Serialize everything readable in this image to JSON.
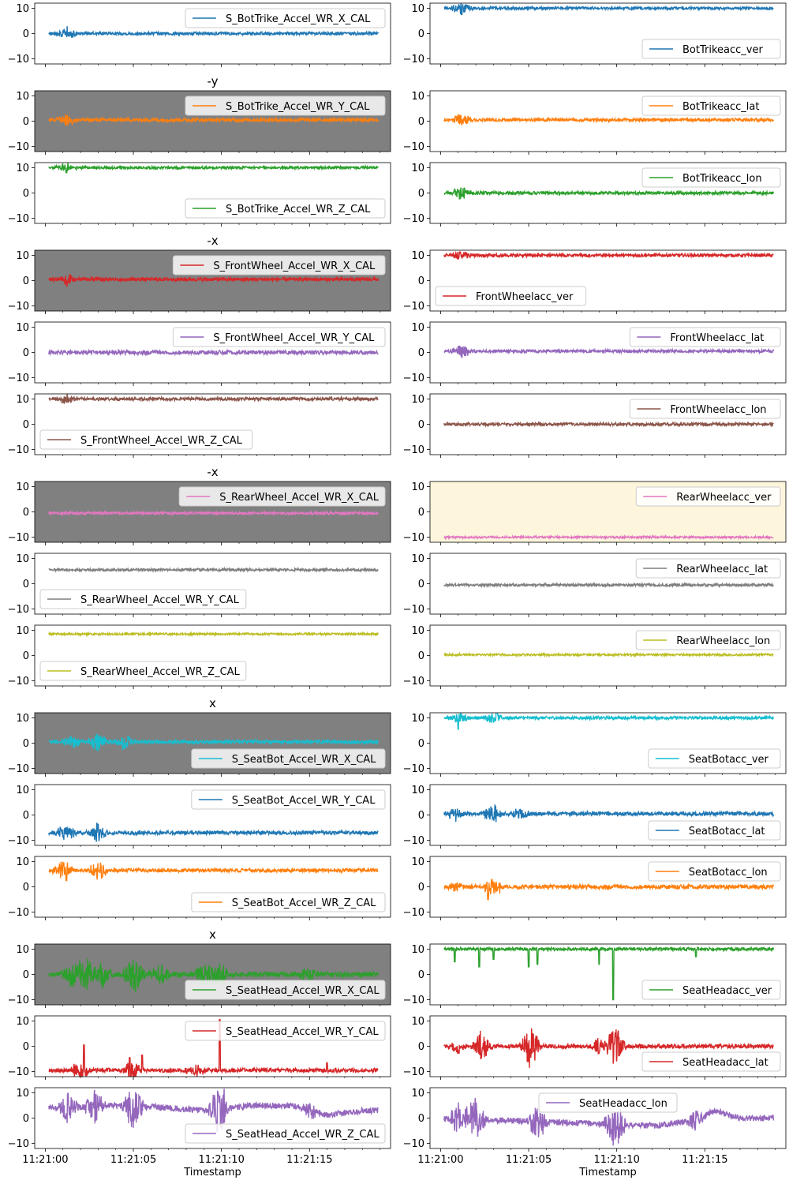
{
  "figure": {
    "xlabel": "Timestamp",
    "x_range_seconds": [
      -0.6,
      19.6
    ],
    "x_ticks": [
      {
        "t": 0,
        "label": "11:21:00"
      },
      {
        "t": 5,
        "label": "11:21:05"
      },
      {
        "t": 10,
        "label": "11:21:10"
      },
      {
        "t": 15,
        "label": "11:21:15"
      }
    ],
    "ylim": [
      -12,
      12
    ],
    "y_ticks": [
      10,
      0,
      -10
    ]
  },
  "chart_data": [
    {
      "type": "line",
      "row": 0,
      "col": 0,
      "legend": "S_BotTrike_Accel_WR_X_CAL",
      "legend_loc": "top-right",
      "color": "#1f77b4",
      "baseline": 0,
      "noise": 0.6,
      "title": "",
      "bg": "#ffffff",
      "bursts": [
        [
          1.2,
          3
        ]
      ]
    },
    {
      "type": "line",
      "row": 0,
      "col": 1,
      "legend": "BotTrikeacc_ver",
      "legend_loc": "bottom-right",
      "color": "#1f77b4",
      "baseline": 10,
      "noise": 0.5,
      "title": "",
      "bg": "#ffffff",
      "bursts": [
        [
          1.2,
          3
        ]
      ],
      "spikes": [
        [
          1.2,
          -2.5
        ]
      ]
    },
    {
      "type": "line",
      "row": 1,
      "col": 0,
      "legend": "S_BotTrike_Accel_WR_Y_CAL",
      "legend_loc": "top-right",
      "color": "#ff7f0e",
      "baseline": 0.5,
      "noise": 0.7,
      "title": "-y",
      "bg": "#808080",
      "bursts": [
        [
          1.2,
          2.5
        ]
      ]
    },
    {
      "type": "line",
      "row": 1,
      "col": 1,
      "legend": "BotTrikeacc_lat",
      "legend_loc": "top-right",
      "color": "#ff7f0e",
      "baseline": 0.5,
      "noise": 0.6,
      "title": "",
      "bg": "#ffffff",
      "bursts": [
        [
          1.2,
          2.5
        ]
      ]
    },
    {
      "type": "line",
      "row": 2,
      "col": 0,
      "legend": "S_BotTrike_Accel_WR_Z_CAL",
      "legend_loc": "bottom-right",
      "color": "#2ca02c",
      "baseline": 10,
      "noise": 0.5,
      "title": "",
      "bg": "#ffffff",
      "bursts": [
        [
          1.2,
          2
        ]
      ],
      "spikes": [
        [
          1.2,
          -2
        ]
      ]
    },
    {
      "type": "line",
      "row": 2,
      "col": 1,
      "legend": "BotTrikeacc_lon",
      "legend_loc": "top-right",
      "color": "#2ca02c",
      "baseline": 0,
      "noise": 0.6,
      "title": "",
      "bg": "#ffffff",
      "bursts": [
        [
          1.2,
          3
        ]
      ]
    },
    {
      "type": "line",
      "row": 3,
      "col": 0,
      "legend": "S_FrontWheel_Accel_WR_X_CAL",
      "legend_loc": "top-right",
      "color": "#d62728",
      "baseline": 0.5,
      "noise": 0.7,
      "title": "-x",
      "bg": "#808080",
      "bursts": [
        [
          1.2,
          2.5
        ]
      ]
    },
    {
      "type": "line",
      "row": 3,
      "col": 1,
      "legend": "FrontWheelacc_ver",
      "legend_loc": "bottom-left",
      "color": "#d62728",
      "baseline": 10,
      "noise": 0.6,
      "title": "",
      "bg": "#ffffff",
      "bursts": [
        [
          1.2,
          2
        ]
      ]
    },
    {
      "type": "line",
      "row": 4,
      "col": 0,
      "legend": "S_FrontWheel_Accel_WR_Y_CAL",
      "legend_loc": "top-right",
      "color": "#9467bd",
      "baseline": 0,
      "noise": 0.8,
      "title": "",
      "bg": "#ffffff",
      "bursts": []
    },
    {
      "type": "line",
      "row": 4,
      "col": 1,
      "legend": "FrontWheelacc_lat",
      "legend_loc": "top-right",
      "color": "#9467bd",
      "baseline": 0.5,
      "noise": 0.6,
      "title": "",
      "bg": "#ffffff",
      "bursts": [
        [
          1.2,
          3
        ]
      ]
    },
    {
      "type": "line",
      "row": 5,
      "col": 0,
      "legend": "S_FrontWheel_Accel_WR_Z_CAL",
      "legend_loc": "bottom-left",
      "color": "#8c564b",
      "baseline": 10,
      "noise": 0.6,
      "title": "",
      "bg": "#ffffff",
      "bursts": [
        [
          1.2,
          2
        ]
      ]
    },
    {
      "type": "line",
      "row": 5,
      "col": 1,
      "legend": "FrontWheelacc_lon",
      "legend_loc": "top-right",
      "color": "#8c564b",
      "baseline": 0,
      "noise": 0.6,
      "title": "",
      "bg": "#ffffff",
      "bursts": []
    },
    {
      "type": "line",
      "row": 6,
      "col": 0,
      "legend": "S_RearWheel_Accel_WR_X_CAL",
      "legend_loc": "top-right",
      "color": "#e377c2",
      "baseline": -0.5,
      "noise": 0.5,
      "title": "-x",
      "bg": "#808080",
      "bursts": []
    },
    {
      "type": "line",
      "row": 6,
      "col": 1,
      "legend": "RearWheelacc_ver",
      "legend_loc": "top-right",
      "color": "#e377c2",
      "baseline": -10,
      "noise": 0.4,
      "title": "",
      "bg": "#fdf6dc",
      "bursts": []
    },
    {
      "type": "line",
      "row": 7,
      "col": 0,
      "legend": "S_RearWheel_Accel_WR_Y_CAL",
      "legend_loc": "bottom-left",
      "color": "#7f7f7f",
      "baseline": 5.5,
      "noise": 0.5,
      "title": "",
      "bg": "#ffffff",
      "bursts": []
    },
    {
      "type": "line",
      "row": 7,
      "col": 1,
      "legend": "RearWheelacc_lat",
      "legend_loc": "top-right",
      "color": "#7f7f7f",
      "baseline": -0.5,
      "noise": 0.5,
      "title": "",
      "bg": "#ffffff",
      "bursts": []
    },
    {
      "type": "line",
      "row": 8,
      "col": 0,
      "legend": "S_RearWheel_Accel_WR_Z_CAL",
      "legend_loc": "bottom-left",
      "color": "#bcbd22",
      "baseline": 8.5,
      "noise": 0.4,
      "title": "",
      "bg": "#ffffff",
      "bursts": []
    },
    {
      "type": "line",
      "row": 8,
      "col": 1,
      "legend": "RearWheelacc_lon",
      "legend_loc": "top-right",
      "color": "#bcbd22",
      "baseline": 0.3,
      "noise": 0.4,
      "title": "",
      "bg": "#ffffff",
      "bursts": []
    },
    {
      "type": "line",
      "row": 9,
      "col": 0,
      "legend": "S_SeatBot_Accel_WR_X_CAL",
      "legend_loc": "bottom-right",
      "color": "#17becf",
      "baseline": 0.5,
      "noise": 0.7,
      "title": "x",
      "bg": "#808080",
      "bursts": [
        [
          1.5,
          3
        ],
        [
          3,
          4
        ],
        [
          4.5,
          3
        ]
      ]
    },
    {
      "type": "line",
      "row": 9,
      "col": 1,
      "legend": "SeatBotacc_ver",
      "legend_loc": "bottom-right",
      "color": "#17becf",
      "baseline": 10,
      "noise": 0.6,
      "title": "",
      "bg": "#ffffff",
      "bursts": [
        [
          1,
          2
        ],
        [
          3,
          2
        ]
      ],
      "spikes": [
        [
          1,
          -4.5
        ],
        [
          3.2,
          3.5
        ]
      ]
    },
    {
      "type": "line",
      "row": 10,
      "col": 0,
      "legend": "S_SeatBot_Accel_WR_Y_CAL",
      "legend_loc": "top-right",
      "color": "#1f77b4",
      "baseline": -7,
      "noise": 0.7,
      "title": "",
      "bg": "#ffffff",
      "bursts": [
        [
          1.2,
          4
        ],
        [
          3,
          4
        ]
      ]
    },
    {
      "type": "line",
      "row": 10,
      "col": 1,
      "legend": "SeatBotacc_lat",
      "legend_loc": "bottom-right",
      "color": "#1f77b4",
      "baseline": 0.5,
      "noise": 0.8,
      "title": "",
      "bg": "#ffffff",
      "bursts": [
        [
          0.8,
          3
        ],
        [
          3,
          4
        ],
        [
          4.5,
          2
        ]
      ]
    },
    {
      "type": "line",
      "row": 11,
      "col": 0,
      "legend": "S_SeatBot_Accel_WR_Z_CAL",
      "legend_loc": "bottom-right",
      "color": "#ff7f0e",
      "baseline": 6.5,
      "noise": 0.7,
      "title": "",
      "bg": "#ffffff",
      "bursts": [
        [
          1,
          4
        ],
        [
          3,
          4
        ]
      ],
      "spikes": [
        [
          1.2,
          -4
        ]
      ]
    },
    {
      "type": "line",
      "row": 11,
      "col": 1,
      "legend": "SeatBotacc_lon",
      "legend_loc": "top-right",
      "color": "#ff7f0e",
      "baseline": 0,
      "noise": 0.8,
      "title": "",
      "bg": "#ffffff",
      "bursts": [
        [
          0.8,
          2
        ],
        [
          3,
          4
        ]
      ],
      "spikes": [
        [
          2.7,
          -5
        ]
      ]
    },
    {
      "type": "line",
      "row": 12,
      "col": 0,
      "legend": "S_SeatHead_Accel_WR_X_CAL",
      "legend_loc": "bottom-right",
      "color": "#2ca02c",
      "baseline": 0,
      "noise": 1.0,
      "title": "x",
      "bg": "#808080",
      "bursts": [
        [
          1.5,
          5
        ],
        [
          2.3,
          7
        ],
        [
          3.2,
          5
        ],
        [
          5,
          8
        ],
        [
          6.5,
          4
        ],
        [
          9,
          4
        ],
        [
          9.8,
          6
        ],
        [
          15,
          3
        ]
      ]
    },
    {
      "type": "line",
      "row": 12,
      "col": 1,
      "legend": "SeatHeadacc_ver",
      "legend_loc": "bottom-right",
      "color": "#2ca02c",
      "baseline": 10,
      "noise": 0.6,
      "title": "",
      "bg": "#ffffff",
      "bursts": [],
      "spikes": [
        [
          0.8,
          -5
        ],
        [
          2.2,
          -7
        ],
        [
          3,
          -4
        ],
        [
          5,
          -7
        ],
        [
          5.5,
          -6
        ],
        [
          9,
          -6
        ],
        [
          9.8,
          -20
        ],
        [
          14.5,
          -3
        ]
      ]
    },
    {
      "type": "line",
      "row": 13,
      "col": 0,
      "legend": "S_SeatHead_Accel_WR_Y_CAL",
      "legend_loc": "top-right",
      "color": "#d62728",
      "baseline": -9.5,
      "noise": 0.8,
      "title": "",
      "bg": "#ffffff",
      "bursts": [
        [
          2,
          4
        ],
        [
          5,
          5
        ],
        [
          8.5,
          3
        ]
      ],
      "spikes": [
        [
          2.2,
          10
        ],
        [
          4.8,
          5
        ],
        [
          5.5,
          6
        ],
        [
          9.9,
          20
        ],
        [
          16,
          3
        ]
      ]
    },
    {
      "type": "line",
      "row": 13,
      "col": 1,
      "legend": "SeatHeadacc_lat",
      "legend_loc": "bottom-right",
      "color": "#d62728",
      "baseline": 0,
      "noise": 0.8,
      "title": "",
      "bg": "#ffffff",
      "bursts": [
        [
          1,
          3
        ],
        [
          2.3,
          6
        ],
        [
          5.1,
          9
        ],
        [
          9,
          3
        ],
        [
          9.9,
          8
        ]
      ]
    },
    {
      "type": "line",
      "row": 14,
      "col": 0,
      "legend": "S_SeatHead_Accel_WR_Z_CAL",
      "legend_loc": "bottom-right",
      "color": "#9467bd",
      "baseline": 3,
      "noise": 1.2,
      "title": "",
      "bg": "#ffffff",
      "bursts": [
        [
          1.3,
          6
        ],
        [
          2.8,
          7
        ],
        [
          5,
          10
        ],
        [
          9.9,
          12
        ],
        [
          15,
          3
        ]
      ],
      "wander": [
        [
          1,
          1
        ],
        [
          3,
          2
        ],
        [
          6,
          1.5
        ],
        [
          9,
          0
        ],
        [
          12,
          2
        ],
        [
          14,
          2
        ],
        [
          16,
          -2
        ],
        [
          18,
          0
        ]
      ]
    },
    {
      "type": "line",
      "row": 14,
      "col": 1,
      "legend": "SeatHeadacc_lon",
      "legend_loc": "top-center",
      "color": "#9467bd",
      "baseline": 0,
      "noise": 1.2,
      "title": "",
      "bg": "#ffffff",
      "bursts": [
        [
          1,
          6
        ],
        [
          2,
          10
        ],
        [
          5.5,
          9
        ],
        [
          9.9,
          10
        ],
        [
          14.5,
          4
        ]
      ],
      "wander": [
        [
          0,
          0
        ],
        [
          4,
          -1
        ],
        [
          8,
          -2
        ],
        [
          12,
          -3
        ],
        [
          14.5,
          -1
        ],
        [
          15.5,
          3
        ],
        [
          17,
          0
        ]
      ]
    }
  ]
}
